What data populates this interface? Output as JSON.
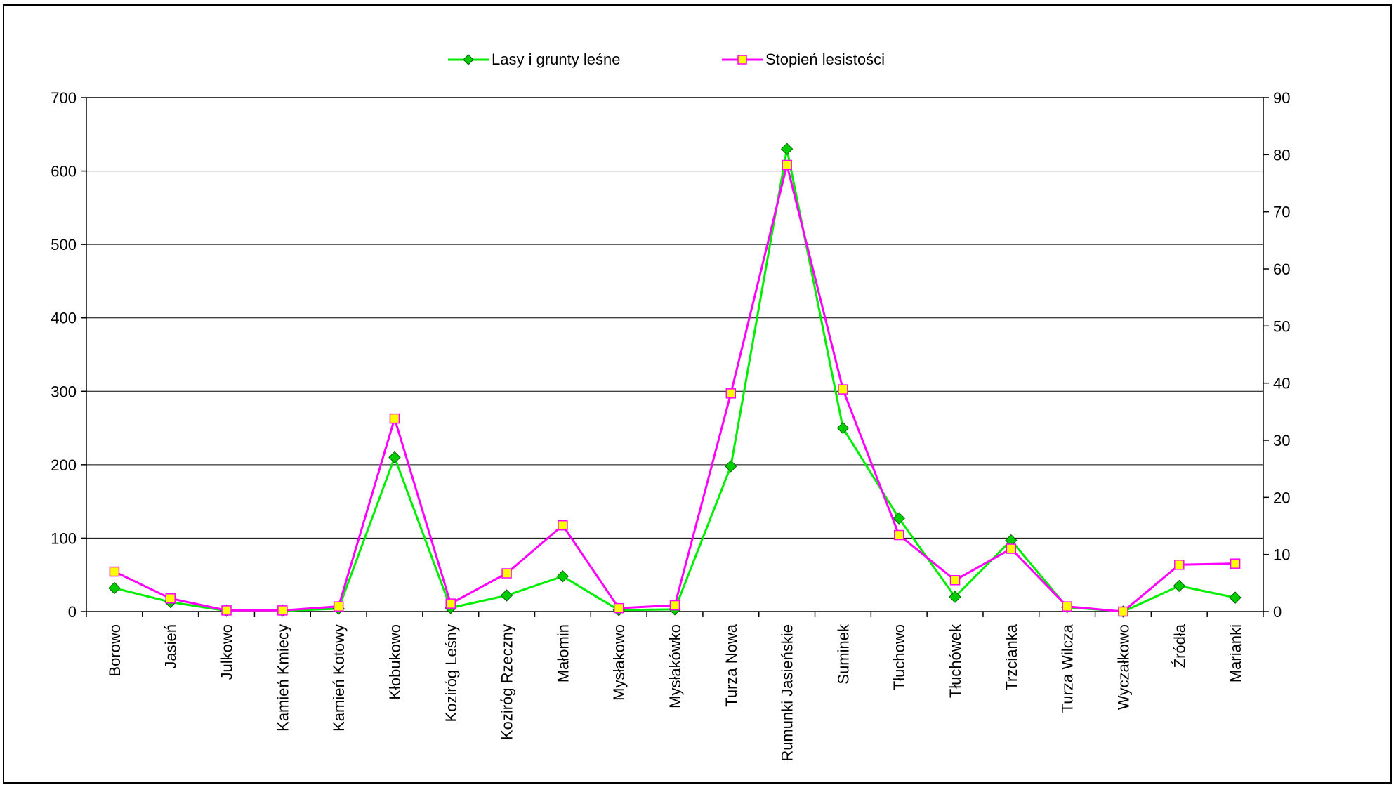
{
  "chart_data": {
    "type": "line",
    "title": "",
    "xlabel": "",
    "ylabel": "",
    "y2label": "",
    "categories": [
      "Borowo",
      "Jasień",
      "Julkowo",
      "Kamień Kmiecy",
      "Kamień Kotowy",
      "Kłobukowo",
      "Kozirόg Leśny",
      "Kozirόg Rzeczny",
      "Małomin",
      "Mysłakowo",
      "Mysłakówko",
      "Turza Nowa",
      "Rumunki Jasieńskie",
      "Suminek",
      "Tłuchowo",
      "Tłuchówek",
      "Trzcianka",
      "Turza Wilcza",
      "Wyczałkowo",
      "Źródła",
      "Marianki"
    ],
    "ylim": [
      0,
      700
    ],
    "y2lim": [
      0,
      90
    ],
    "yticks": [
      0,
      100,
      200,
      300,
      400,
      500,
      600,
      700
    ],
    "y2ticks": [
      0,
      10,
      20,
      30,
      40,
      50,
      60,
      70,
      80,
      90
    ],
    "grid": true,
    "legend_position": "top-center",
    "series": [
      {
        "name": "Lasy i grunty leśne",
        "axis": "left",
        "color": "#00ee00",
        "marker": "diamond",
        "marker_color": "#00cc00",
        "values": [
          32,
          13,
          1,
          1,
          4,
          210,
          5,
          22,
          48,
          2,
          3,
          198,
          630,
          250,
          127,
          20,
          97,
          6,
          0,
          35,
          19
        ]
      },
      {
        "name": "Stopień lesistości",
        "axis": "right",
        "color": "#ff00ff",
        "marker": "square",
        "marker_color": "#ffff00",
        "values": [
          7.0,
          2.3,
          0.2,
          0.2,
          0.9,
          33.8,
          1.4,
          6.7,
          15.1,
          0.6,
          1.1,
          38.2,
          78.2,
          38.9,
          13.4,
          5.5,
          11.0,
          0.9,
          0.0,
          8.2,
          8.4
        ]
      }
    ]
  }
}
